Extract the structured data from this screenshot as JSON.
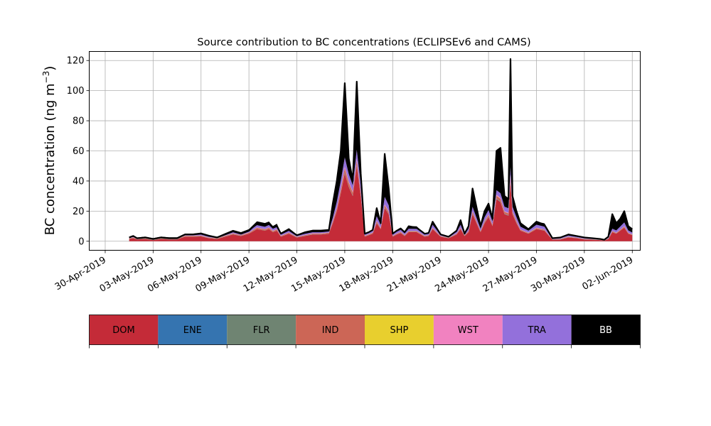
{
  "chart_data": {
    "type": "area",
    "stacked": true,
    "title": "Source contribution to BC concentrations (ECLIPSEv6 and CAMS)",
    "xlabel": "",
    "ylabel": "BC concentration (ng m",
    "ylabel_superscript": "−3",
    "ylabel_suffix": ")",
    "xlim": [
      "2019-04-29",
      "2019-06-02 12:00"
    ],
    "ylim": [
      -6,
      126
    ],
    "grid": true,
    "x_ticks": [
      {
        "date": "2019-04-30",
        "label": "30-Apr-2019"
      },
      {
        "date": "2019-05-03",
        "label": "03-May-2019"
      },
      {
        "date": "2019-05-06",
        "label": "06-May-2019"
      },
      {
        "date": "2019-05-09",
        "label": "09-May-2019"
      },
      {
        "date": "2019-05-12",
        "label": "12-May-2019"
      },
      {
        "date": "2019-05-15",
        "label": "15-May-2019"
      },
      {
        "date": "2019-05-18",
        "label": "18-May-2019"
      },
      {
        "date": "2019-05-21",
        "label": "21-May-2019"
      },
      {
        "date": "2019-05-24",
        "label": "24-May-2019"
      },
      {
        "date": "2019-05-27",
        "label": "27-May-2019"
      },
      {
        "date": "2019-05-30",
        "label": "30-May-2019"
      },
      {
        "date": "2019-06-02",
        "label": "02-Jun-2019"
      }
    ],
    "y_ticks": [
      0,
      20,
      40,
      60,
      80,
      100,
      120
    ],
    "x": [
      "2019-05-01 12:00",
      "2019-05-01 18:00",
      "2019-05-02 00:00",
      "2019-05-02 12:00",
      "2019-05-03 00:00",
      "2019-05-03 12:00",
      "2019-05-04 00:00",
      "2019-05-04 12:00",
      "2019-05-05 00:00",
      "2019-05-05 12:00",
      "2019-05-06 00:00",
      "2019-05-06 12:00",
      "2019-05-07 00:00",
      "2019-05-07 12:00",
      "2019-05-08 00:00",
      "2019-05-08 12:00",
      "2019-05-09 00:00",
      "2019-05-09 12:00",
      "2019-05-10 00:00",
      "2019-05-10 06:00",
      "2019-05-10 12:00",
      "2019-05-10 18:00",
      "2019-05-11 00:00",
      "2019-05-11 12:00",
      "2019-05-12 00:00",
      "2019-05-12 12:00",
      "2019-05-13 00:00",
      "2019-05-13 12:00",
      "2019-05-14 00:00",
      "2019-05-14 06:00",
      "2019-05-14 12:00",
      "2019-05-14 18:00",
      "2019-05-15 00:00",
      "2019-05-15 06:00",
      "2019-05-15 12:00",
      "2019-05-15 18:00",
      "2019-05-16 00:00",
      "2019-05-16 06:00",
      "2019-05-16 12:00",
      "2019-05-16 18:00",
      "2019-05-17 00:00",
      "2019-05-17 06:00",
      "2019-05-17 12:00",
      "2019-05-17 18:00",
      "2019-05-18 00:00",
      "2019-05-18 06:00",
      "2019-05-18 12:00",
      "2019-05-18 18:00",
      "2019-05-19 00:00",
      "2019-05-19 12:00",
      "2019-05-20 00:00",
      "2019-05-20 06:00",
      "2019-05-20 12:00",
      "2019-05-21 00:00",
      "2019-05-21 12:00",
      "2019-05-22 00:00",
      "2019-05-22 06:00",
      "2019-05-22 12:00",
      "2019-05-22 18:00",
      "2019-05-23 00:00",
      "2019-05-23 12:00",
      "2019-05-23 18:00",
      "2019-05-24 00:00",
      "2019-05-24 06:00",
      "2019-05-24 12:00",
      "2019-05-24 18:00",
      "2019-05-25 00:00",
      "2019-05-25 06:00",
      "2019-05-25 09:00",
      "2019-05-25 12:00",
      "2019-05-25 18:00",
      "2019-05-26 00:00",
      "2019-05-26 12:00",
      "2019-05-27 00:00",
      "2019-05-27 12:00",
      "2019-05-28 00:00",
      "2019-05-28 12:00",
      "2019-05-29 00:00",
      "2019-05-29 12:00",
      "2019-05-30 00:00",
      "2019-05-30 12:00",
      "2019-05-31 00:00",
      "2019-05-31 06:00",
      "2019-05-31 12:00",
      "2019-05-31 18:00",
      "2019-06-01 00:00",
      "2019-06-01 06:00",
      "2019-06-01 12:00",
      "2019-06-01 18:00",
      "2019-06-02 00:00"
    ],
    "total": [
      2.5,
      3.5,
      2,
      2.5,
      1.5,
      2.5,
      2,
      2,
      4.5,
      4.5,
      5,
      3.5,
      2.5,
      4.5,
      6.5,
      5,
      7,
      12,
      11,
      12,
      9,
      10,
      5,
      7.5,
      4,
      5.5,
      6.5,
      6.5,
      7,
      25,
      40,
      60,
      105,
      55,
      40,
      106,
      45,
      5,
      6,
      7.5,
      22,
      12,
      58,
      35,
      5,
      7,
      8.5,
      6,
      10,
      9,
      5,
      5.5,
      13,
      4.5,
      3,
      7,
      14,
      5,
      10,
      35,
      10,
      20,
      25,
      15,
      60,
      62,
      30,
      28,
      121,
      30,
      20,
      12,
      8,
      13,
      11,
      2,
      2.5,
      4.5,
      3.5,
      2.5,
      2,
      1.5,
      1,
      3,
      18,
      12,
      15,
      20,
      10,
      8
    ],
    "series": [
      {
        "name": "DOM",
        "color": "#c42b38",
        "values": [
          1.5,
          2,
          1.2,
          1.5,
          0.8,
          1.5,
          1.2,
          1.2,
          3,
          3,
          3.2,
          2,
          1.5,
          3,
          4.5,
          3.5,
          5,
          8,
          7,
          8,
          6,
          7,
          3,
          5,
          2.5,
          3.5,
          4.5,
          4.5,
          5,
          12,
          20,
          32,
          45,
          36,
          30,
          50,
          30,
          3,
          4,
          5,
          12,
          8,
          22,
          18,
          3,
          4.5,
          5.5,
          3.5,
          6,
          6,
          3,
          3.5,
          8,
          3,
          2,
          4.5,
          8,
          3.5,
          6,
          18,
          6,
          12,
          16,
          10,
          28,
          26,
          18,
          17,
          40,
          18,
          12,
          7,
          5,
          8,
          7,
          1,
          1.2,
          2.5,
          2,
          1.2,
          1,
          0.8,
          0.5,
          1.5,
          6,
          5,
          7,
          9,
          5,
          4
        ]
      },
      {
        "name": "ENE",
        "color": "#3574b0",
        "values": [
          0.05,
          0.05,
          0.05,
          0.05,
          0.05,
          0.05,
          0.05,
          0.05,
          0.05,
          0.05,
          0.05,
          0.05,
          0.05,
          0.05,
          0.05,
          0.05,
          0.05,
          0.05,
          0.05,
          0.05,
          0.05,
          0.05,
          0.05,
          0.05,
          0.05,
          0.05,
          0.05,
          0.05,
          0.05,
          0.1,
          0.1,
          0.1,
          0.2,
          0.1,
          0.1,
          0.2,
          0.1,
          0.05,
          0.05,
          0.05,
          0.1,
          0.05,
          0.1,
          0.1,
          0.05,
          0.05,
          0.05,
          0.05,
          0.05,
          0.05,
          0.05,
          0.05,
          0.05,
          0.05,
          0.05,
          0.05,
          0.05,
          0.05,
          0.05,
          0.1,
          0.05,
          0.1,
          0.1,
          0.05,
          0.1,
          0.1,
          0.1,
          0.1,
          0.2,
          0.1,
          0.1,
          0.05,
          0.05,
          0.05,
          0.05,
          0.05,
          0.05,
          0.05,
          0.05,
          0.05,
          0.05,
          0.05,
          0.05,
          0.05,
          0.05,
          0.05,
          0.05,
          0.05,
          0.05,
          0.05
        ]
      },
      {
        "name": "FLR",
        "color": "#6f8472",
        "values": [
          0.1,
          0.1,
          0.1,
          0.1,
          0.1,
          0.1,
          0.1,
          0.1,
          0.1,
          0.1,
          0.1,
          0.1,
          0.1,
          0.1,
          0.1,
          0.1,
          0.1,
          0.1,
          0.1,
          0.1,
          0.1,
          0.1,
          0.1,
          0.1,
          0.1,
          0.1,
          0.1,
          0.1,
          0.1,
          0.2,
          0.2,
          0.3,
          0.4,
          0.3,
          0.3,
          0.4,
          0.3,
          0.1,
          0.1,
          0.1,
          0.2,
          0.1,
          0.3,
          0.2,
          0.1,
          0.1,
          0.1,
          0.1,
          0.1,
          0.1,
          0.1,
          0.1,
          0.1,
          0.1,
          0.1,
          0.1,
          0.1,
          0.1,
          0.1,
          0.2,
          0.1,
          0.2,
          0.2,
          0.1,
          0.3,
          0.3,
          0.2,
          0.2,
          0.4,
          0.2,
          0.2,
          0.1,
          0.1,
          0.1,
          0.1,
          0.1,
          0.1,
          0.1,
          0.1,
          0.1,
          0.1,
          0.1,
          0.1,
          0.1,
          0.1,
          0.1,
          0.1,
          0.1,
          0.1,
          0.1
        ]
      },
      {
        "name": "IND",
        "color": "#cc6656",
        "values": [
          0.3,
          0.3,
          0.3,
          0.3,
          0.2,
          0.3,
          0.3,
          0.3,
          0.4,
          0.4,
          0.4,
          0.3,
          0.3,
          0.4,
          0.5,
          0.4,
          0.5,
          0.8,
          0.7,
          0.8,
          0.6,
          0.7,
          0.4,
          0.5,
          0.3,
          0.4,
          0.5,
          0.5,
          0.5,
          1,
          1.5,
          2,
          3,
          2.5,
          2,
          3,
          2,
          0.4,
          0.4,
          0.5,
          1,
          0.6,
          1.5,
          1.2,
          0.4,
          0.4,
          0.5,
          0.4,
          0.5,
          0.5,
          0.4,
          0.4,
          0.6,
          0.3,
          0.2,
          0.4,
          0.6,
          0.3,
          0.5,
          1.2,
          0.5,
          0.9,
          1.1,
          0.7,
          1.8,
          1.8,
          1.2,
          1.2,
          2.5,
          1.2,
          0.9,
          0.5,
          0.4,
          0.6,
          0.5,
          0.1,
          0.2,
          0.3,
          0.2,
          0.2,
          0.1,
          0.1,
          0.1,
          0.2,
          0.5,
          0.4,
          0.5,
          0.6,
          0.4,
          0.3
        ]
      },
      {
        "name": "SHP",
        "color": "#e8cf2e",
        "values": [
          0.05,
          0.05,
          0.05,
          0.05,
          0.05,
          0.05,
          0.05,
          0.05,
          0.05,
          0.05,
          0.05,
          0.05,
          0.05,
          0.05,
          0.05,
          0.05,
          0.05,
          0.05,
          0.05,
          0.05,
          0.05,
          0.05,
          0.05,
          0.05,
          0.05,
          0.05,
          0.05,
          0.05,
          0.05,
          0.05,
          0.1,
          0.1,
          0.1,
          0.1,
          0.1,
          0.1,
          0.1,
          0.05,
          0.05,
          0.05,
          0.05,
          0.05,
          0.1,
          0.05,
          0.05,
          0.05,
          0.05,
          0.05,
          0.05,
          0.05,
          0.05,
          0.05,
          0.05,
          0.05,
          0.05,
          0.05,
          0.05,
          0.05,
          0.05,
          0.05,
          0.05,
          0.05,
          0.05,
          0.05,
          0.1,
          0.1,
          0.05,
          0.05,
          0.1,
          0.05,
          0.05,
          0.05,
          0.05,
          0.05,
          0.05,
          0.05,
          0.05,
          0.05,
          0.05,
          0.05,
          0.05,
          0.05,
          0.05,
          0.05,
          0.05,
          0.05,
          0.05,
          0.05,
          0.05,
          0.05
        ]
      },
      {
        "name": "WST",
        "color": "#f182c0",
        "values": [
          0.1,
          0.1,
          0.1,
          0.1,
          0.05,
          0.1,
          0.1,
          0.1,
          0.1,
          0.1,
          0.1,
          0.1,
          0.1,
          0.1,
          0.1,
          0.1,
          0.2,
          0.2,
          0.2,
          0.2,
          0.2,
          0.2,
          0.1,
          0.1,
          0.1,
          0.1,
          0.1,
          0.1,
          0.1,
          0.3,
          0.4,
          0.6,
          1,
          0.7,
          0.6,
          1,
          0.6,
          0.1,
          0.1,
          0.1,
          0.3,
          0.2,
          0.5,
          0.4,
          0.1,
          0.1,
          0.1,
          0.1,
          0.1,
          0.1,
          0.1,
          0.1,
          0.2,
          0.1,
          0.05,
          0.1,
          0.2,
          0.1,
          0.1,
          0.3,
          0.1,
          0.2,
          0.3,
          0.2,
          0.6,
          0.6,
          0.4,
          0.4,
          1,
          0.4,
          0.3,
          0.2,
          0.1,
          0.2,
          0.2,
          0.05,
          0.05,
          0.1,
          0.05,
          0.05,
          0.05,
          0.05,
          0.05,
          0.05,
          0.1,
          0.1,
          0.1,
          0.2,
          0.1,
          0.1
        ]
      },
      {
        "name": "TRA",
        "color": "#9370db",
        "values": [
          0.4,
          0.5,
          0.3,
          0.4,
          0.3,
          0.4,
          0.3,
          0.3,
          0.6,
          0.6,
          0.8,
          0.6,
          0.4,
          0.7,
          1,
          0.8,
          1,
          1.5,
          1.5,
          1.6,
          1.3,
          1.4,
          0.8,
          1.2,
          0.6,
          0.9,
          1,
          1,
          1.1,
          2,
          4,
          5,
          6,
          5,
          4,
          6,
          5,
          0.8,
          0.9,
          1.2,
          3,
          2,
          5,
          4,
          0.8,
          1.1,
          1.3,
          1,
          1.5,
          1.4,
          0.8,
          0.9,
          2,
          0.6,
          0.4,
          1,
          2,
          0.7,
          1.5,
          3,
          1.5,
          2.5,
          3,
          2,
          3,
          3,
          3,
          3,
          5,
          3,
          2.5,
          1.8,
          1.3,
          2,
          1.8,
          0.3,
          0.4,
          0.7,
          0.5,
          0.4,
          0.3,
          0.2,
          0.1,
          0.4,
          1.5,
          1.5,
          2,
          2.5,
          1.5,
          1.2
        ]
      },
      {
        "name": "BB",
        "color": "#000000",
        "values": [
          0.5,
          0.9,
          0.3,
          0.6,
          0.5,
          0.6,
          0.5,
          0.5,
          0.8,
          0.8,
          1,
          1,
          0.5,
          0.9,
          1.2,
          1,
          1.1,
          2.5,
          2.5,
          2.3,
          1.8,
          2.1,
          1.2,
          1.7,
          0.8,
          1.4,
          1.3,
          1.3,
          1.1,
          9.4,
          13.7,
          21.9,
          49.3,
          10.3,
          2.9,
          45.3,
          6.9,
          0.5,
          0.4,
          0.5,
          5.4,
          1,
          28.5,
          11.1,
          0.5,
          0.7,
          0.9,
          0.8,
          1.7,
          1.7,
          0.5,
          0.5,
          2,
          0.4,
          0.2,
          0.9,
          3,
          0.3,
          1.7,
          12.1,
          1.7,
          3.9,
          4.3,
          1.9,
          26.1,
          30.1,
          7.1,
          6,
          71.8,
          7.1,
          3.9,
          2.3,
          1,
          2,
          2.2,
          0.4,
          0.5,
          0.7,
          0.6,
          0.5,
          0.4,
          0.2,
          0.1,
          0.7,
          9.7,
          4.9,
          5.2,
          7.5,
          2.9,
          2.3
        ]
      }
    ],
    "legend": {
      "placement": "bottom",
      "entries": [
        "DOM",
        "ENE",
        "FLR",
        "IND",
        "SHP",
        "WST",
        "TRA",
        "BB"
      ],
      "text_colors": [
        "#000000",
        "#000000",
        "#000000",
        "#000000",
        "#000000",
        "#000000",
        "#000000",
        "#ffffff"
      ]
    }
  }
}
